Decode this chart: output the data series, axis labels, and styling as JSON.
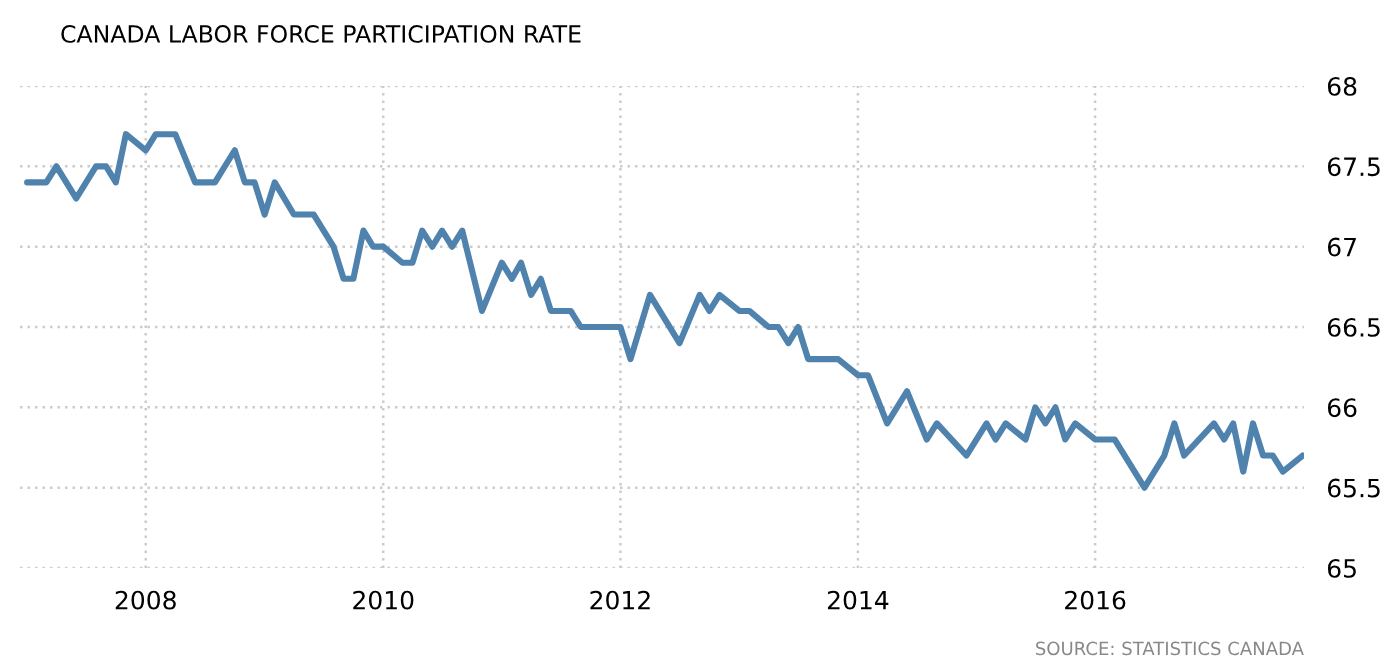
{
  "chart_data": {
    "type": "line",
    "title": "CANADA LABOR FORCE PARTICIPATION RATE",
    "annotations": [
      "SOURCE: STATISTICS CANADA"
    ],
    "x": [
      "2007-01",
      "2007-03",
      "2007-04",
      "2007-06",
      "2007-08",
      "2007-09",
      "2007-10",
      "2007-11",
      "2008-01",
      "2008-02",
      "2008-04",
      "2008-06",
      "2008-08",
      "2008-10",
      "2008-11",
      "2008-12",
      "2009-01",
      "2009-02",
      "2009-04",
      "2009-06",
      "2009-08",
      "2009-09",
      "2009-10",
      "2009-11",
      "2009-12",
      "2010-01",
      "2010-03",
      "2010-04",
      "2010-05",
      "2010-06",
      "2010-07",
      "2010-08",
      "2010-09",
      "2010-11",
      "2011-01",
      "2011-02",
      "2011-03",
      "2011-04",
      "2011-05",
      "2011-06",
      "2011-08",
      "2011-09",
      "2012-01",
      "2012-02",
      "2012-04",
      "2012-07",
      "2012-09",
      "2012-10",
      "2012-11",
      "2013-01",
      "2013-02",
      "2013-04",
      "2013-05",
      "2013-06",
      "2013-07",
      "2013-08",
      "2013-11",
      "2014-01",
      "2014-02",
      "2014-04",
      "2014-06",
      "2014-08",
      "2014-09",
      "2014-12",
      "2015-02",
      "2015-03",
      "2015-04",
      "2015-06",
      "2015-07",
      "2015-08",
      "2015-09",
      "2015-10",
      "2015-11",
      "2016-01",
      "2016-03",
      "2016-06",
      "2016-08",
      "2016-09",
      "2016-10",
      "2017-01",
      "2017-02",
      "2017-03",
      "2017-04",
      "2017-05",
      "2017-06",
      "2017-07",
      "2017-08",
      "2017-10"
    ],
    "series": [
      {
        "color": "#4f82ad",
        "values": [
          67.4,
          67.4,
          67.5,
          67.3,
          67.5,
          67.5,
          67.4,
          67.7,
          67.6,
          67.7,
          67.7,
          67.4,
          67.4,
          67.6,
          67.4,
          67.4,
          67.2,
          67.4,
          67.2,
          67.2,
          67.0,
          66.8,
          66.8,
          67.1,
          67.0,
          67.0,
          66.9,
          66.9,
          67.1,
          67.0,
          67.1,
          67.0,
          67.1,
          66.6,
          66.9,
          66.8,
          66.9,
          66.7,
          66.8,
          66.6,
          66.6,
          66.5,
          66.5,
          66.3,
          66.7,
          66.4,
          66.7,
          66.6,
          66.7,
          66.6,
          66.6,
          66.5,
          66.5,
          66.4,
          66.5,
          66.3,
          66.3,
          66.2,
          66.2,
          65.9,
          66.1,
          65.8,
          65.9,
          65.7,
          65.9,
          65.8,
          65.9,
          65.8,
          66.0,
          65.9,
          66.0,
          65.8,
          65.9,
          65.8,
          65.8,
          65.5,
          65.7,
          65.9,
          65.7,
          65.9,
          65.8,
          65.9,
          65.6,
          65.9,
          65.7,
          65.7,
          65.6,
          65.7
        ]
      }
    ],
    "xlim": [
      "2006-12-10",
      "2017-10-05"
    ],
    "xticks": [
      {
        "value": "2008-01-01",
        "label": "2008"
      },
      {
        "value": "2010-01-01",
        "label": "2010"
      },
      {
        "value": "2012-01-01",
        "label": "2012"
      },
      {
        "value": "2014-01-01",
        "label": "2014"
      },
      {
        "value": "2016-01-01",
        "label": "2016"
      }
    ],
    "ylim": [
      65,
      68
    ],
    "yticks": [
      65,
      65.5,
      66,
      66.5,
      67,
      67.5,
      68
    ],
    "grid": true
  }
}
